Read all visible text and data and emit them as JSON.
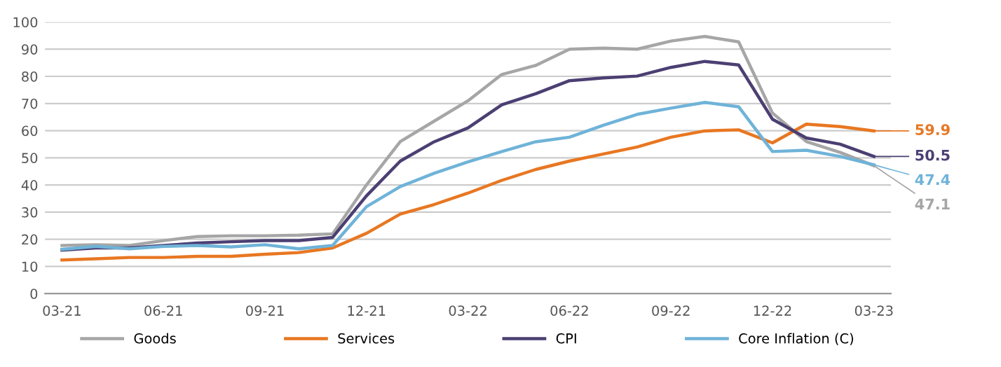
{
  "chart_data": {
    "type": "line",
    "categories": [
      "03-21",
      null,
      null,
      "06-21",
      null,
      null,
      "09-21",
      null,
      null,
      "12-21",
      null,
      null,
      "03-22",
      null,
      null,
      "06-22",
      null,
      null,
      "09-22",
      null,
      null,
      "12-22",
      null,
      null,
      "03-23"
    ],
    "series": [
      {
        "name": "Goods",
        "color": "#a6a6a6",
        "values": [
          17.7,
          18,
          17.7,
          19.5,
          21,
          21.3,
          21.3,
          21.5,
          22,
          40,
          56,
          63.5,
          71,
          80.7,
          84,
          90,
          90.4,
          90,
          93,
          94.7,
          92.7,
          66.5,
          56,
          52,
          47.1
        ]
      },
      {
        "name": "Services",
        "color": "#e87722",
        "values": [
          12.4,
          12.8,
          13.3,
          13.3,
          13.7,
          13.7,
          14.5,
          15.1,
          16.8,
          22.2,
          29.3,
          32.8,
          37,
          41.7,
          45.7,
          48.8,
          51.4,
          54,
          57.6,
          59.9,
          60.3,
          55.5,
          62.4,
          61.5,
          59.9
        ]
      },
      {
        "name": "CPI",
        "color": "#4b3f72",
        "values": [
          16,
          16.8,
          16.8,
          17.7,
          18.6,
          19.1,
          19.5,
          19.5,
          20.7,
          36,
          48.8,
          55.9,
          61,
          69.5,
          73.6,
          78.4,
          79.4,
          80.1,
          83.3,
          85.5,
          84.2,
          64.2,
          57.3,
          55,
          50.5
        ]
      },
      {
        "name": "Core Inflation (C)",
        "color": "#6fb3d8",
        "values": [
          16.3,
          17.4,
          16.5,
          17.4,
          17.7,
          17.2,
          18,
          16.5,
          17.7,
          32,
          39.4,
          44.3,
          48.5,
          52.3,
          55.9,
          57.6,
          62,
          66,
          68.3,
          70.4,
          68.8,
          52.3,
          52.8,
          50.5,
          47.4
        ]
      }
    ],
    "annotations": [
      {
        "text": "59.9",
        "x": "03-23",
        "y": 59.9
      },
      {
        "text": "50.5",
        "x": "03-23",
        "y": 50.5
      },
      {
        "text": "47.4",
        "x": "03-23",
        "y": 47.4
      },
      {
        "text": "47.1",
        "x": "03-23",
        "y": 47.1
      }
    ],
    "ylim": [
      0,
      100
    ],
    "yticks": [
      0,
      10,
      20,
      30,
      40,
      50,
      60,
      70,
      80,
      90,
      100
    ],
    "grid": "y",
    "legend": "bottom",
    "marker": "none",
    "line_style": "solid"
  }
}
